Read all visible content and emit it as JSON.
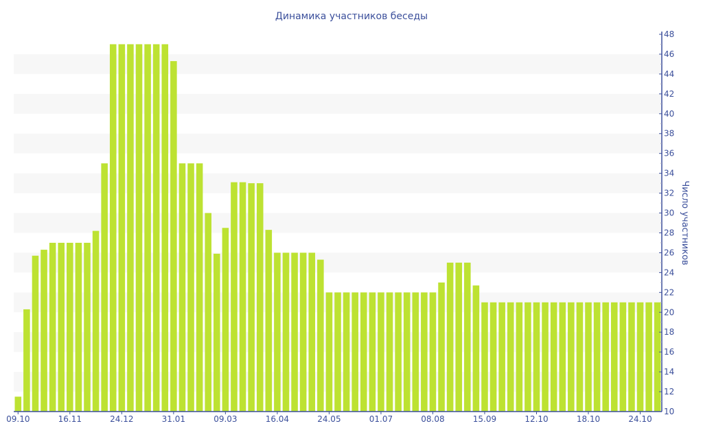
{
  "chart_data": {
    "type": "bar",
    "title": "Динамика участников беседы",
    "xlabel": "",
    "ylabel": "Число участников",
    "ylim": [
      10,
      48
    ],
    "ytick_step": 2,
    "grid": "alternating horizontal bands",
    "bar_color": "#bde232",
    "axis_color": "#3b4f9b",
    "x_tick_labels": [
      "09.10",
      "16.11",
      "24.12",
      "31.01",
      "09.03",
      "16.04",
      "24.05",
      "01.07",
      "08.08",
      "15.09",
      "12.10",
      "18.10",
      "24.10"
    ],
    "x_tick_every": 6,
    "values": [
      11.5,
      20.3,
      25.7,
      26.3,
      27,
      27,
      27,
      27,
      27,
      28.2,
      35,
      47,
      47,
      47,
      47,
      47,
      47,
      47,
      45.3,
      35,
      35,
      35,
      30,
      25.9,
      28.5,
      33.1,
      33.1,
      33,
      33,
      28.3,
      26,
      26,
      26,
      26,
      26,
      25.3,
      22,
      22,
      22,
      22,
      22,
      22,
      22,
      22,
      22,
      22,
      22,
      22,
      22,
      23,
      25,
      25,
      25,
      22.7,
      21,
      21,
      21,
      21,
      21,
      21,
      21,
      21,
      21,
      21,
      21,
      21,
      21,
      21,
      21,
      21,
      21,
      21,
      21,
      21,
      21
    ]
  }
}
